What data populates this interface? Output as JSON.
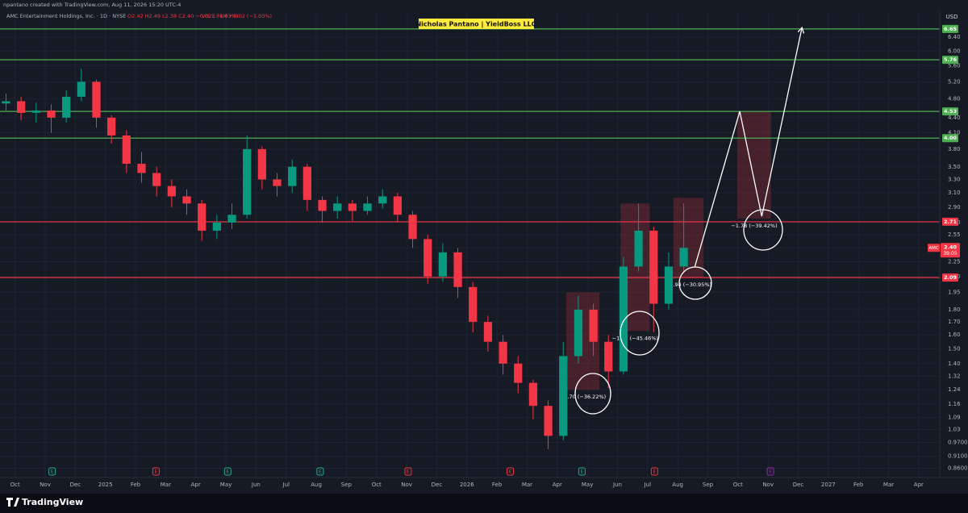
{
  "header": {
    "credit": "npantano created with TradingView.com, Aug 11, 2026 15:20 UTC-4",
    "symbol_line": "AMC Entertainment Holdings, Inc. · 1D · NYSE",
    "ohlc": "O2.42 H2.49 L2.38 C2.40 −0.02 (−1.03%)",
    "volume": "Vol 1.76M −0.02 (−1.03%)",
    "watermark": "Nicholas Pantano | YieldBoss LLC",
    "currency": "USD"
  },
  "footer": {
    "brand": "TradingView"
  },
  "chart_data": {
    "type": "candlestick",
    "log_scale": true,
    "grid": true,
    "up_color": "#089981",
    "down_color": "#f23645",
    "xlim": [
      -0.5,
      30.7
    ],
    "ylim": [
      0.83,
      6.85
    ],
    "xticks": [
      {
        "value": 0,
        "label": "Oct"
      },
      {
        "value": 1,
        "label": "Nov"
      },
      {
        "value": 2,
        "label": "Dec"
      },
      {
        "value": 3,
        "label": "2025"
      },
      {
        "value": 4,
        "label": "Feb"
      },
      {
        "value": 5,
        "label": "Mar"
      },
      {
        "value": 6,
        "label": "Apr"
      },
      {
        "value": 7,
        "label": "May"
      },
      {
        "value": 8,
        "label": "Jun"
      },
      {
        "value": 9,
        "label": "Jul"
      },
      {
        "value": 10,
        "label": "Aug"
      },
      {
        "value": 11,
        "label": "Sep"
      },
      {
        "value": 12,
        "label": "Oct"
      },
      {
        "value": 13,
        "label": "Nov"
      },
      {
        "value": 14,
        "label": "Dec"
      },
      {
        "value": 15,
        "label": "2026"
      },
      {
        "value": 16,
        "label": "Feb"
      },
      {
        "value": 17,
        "label": "Mar"
      },
      {
        "value": 18,
        "label": "Apr"
      },
      {
        "value": 19,
        "label": "May"
      },
      {
        "value": 20,
        "label": "Jun"
      },
      {
        "value": 21,
        "label": "Jul"
      },
      {
        "value": 22,
        "label": "Aug"
      },
      {
        "value": 23,
        "label": "Sep"
      },
      {
        "value": 24,
        "label": "Oct"
      },
      {
        "value": 25,
        "label": "Nov"
      },
      {
        "value": 26,
        "label": "Dec"
      },
      {
        "value": 27,
        "label": "2027"
      },
      {
        "value": 28,
        "label": "Feb"
      },
      {
        "value": 29,
        "label": "Mar"
      },
      {
        "value": 30,
        "label": "Apr"
      }
    ],
    "yticks": [
      {
        "value": 6.4,
        "label": "6.40"
      },
      {
        "value": 6,
        "label": "6.00"
      },
      {
        "value": 5.6,
        "label": "5.60"
      },
      {
        "value": 5.2,
        "label": "5.20"
      },
      {
        "value": 4.8,
        "label": "4.80"
      },
      {
        "value": 4.4,
        "label": "4.40"
      },
      {
        "value": 4.1,
        "label": "4.10"
      },
      {
        "value": 3.8,
        "label": "3.80"
      },
      {
        "value": 3.5,
        "label": "3.50"
      },
      {
        "value": 3.3,
        "label": "3.30"
      },
      {
        "value": 3.1,
        "label": "3.10"
      },
      {
        "value": 2.9,
        "label": "2.90"
      },
      {
        "value": 2.7,
        "label": "2.70"
      },
      2.55,
      {
        "value": 2.4,
        "label": "2.40"
      },
      2.25,
      {
        "value": 2.1,
        "label": "2.10"
      },
      1.95,
      {
        "value": 1.8,
        "label": "1.80"
      },
      {
        "value": 1.7,
        "label": "1.70"
      },
      {
        "value": 1.6,
        "label": "1.60"
      },
      {
        "value": 1.5,
        "label": "1.50"
      },
      {
        "value": 1.4,
        "label": "1.40"
      },
      1.32,
      1.24,
      1.16,
      1.09,
      1.03,
      {
        "value": 0.97,
        "label": "0.9700"
      },
      {
        "value": 0.91,
        "label": "0.9100"
      },
      {
        "value": 0.86,
        "label": "0.8600"
      }
    ],
    "x": [
      -0.3,
      0.2,
      0.7,
      1.2,
      1.7,
      2.2,
      2.7,
      3.2,
      3.7,
      4.2,
      4.7,
      5.2,
      5.7,
      6.2,
      6.7,
      7.2,
      7.7,
      8.2,
      8.7,
      9.2,
      9.7,
      10.2,
      10.7,
      11.2,
      11.7,
      12.2,
      12.7,
      13.2,
      13.7,
      14.2,
      14.7,
      15.2,
      15.7,
      16.2,
      16.7,
      17.2,
      17.7,
      18.2,
      18.7,
      19.2,
      19.7,
      20.2,
      20.7,
      21.2,
      21.7,
      22.2
    ],
    "open": [
      4.7,
      4.75,
      4.5,
      4.55,
      4.4,
      4.85,
      5.2,
      4.4,
      4.05,
      3.55,
      3.4,
      3.2,
      3.05,
      2.95,
      2.6,
      2.7,
      2.8,
      3.8,
      3.3,
      3.2,
      3.5,
      3.0,
      2.85,
      2.95,
      2.85,
      2.95,
      3.05,
      2.8,
      2.5,
      2.1,
      2.35,
      2.0,
      1.7,
      1.55,
      1.4,
      1.28,
      1.15,
      1.0,
      1.45,
      1.8,
      1.55,
      1.35,
      2.2,
      2.6,
      1.85,
      2.2
    ],
    "high": [
      4.92,
      4.85,
      4.72,
      4.68,
      5.0,
      5.53,
      5.25,
      4.45,
      4.15,
      3.75,
      3.5,
      3.3,
      3.15,
      3.0,
      2.8,
      2.95,
      4.05,
      3.85,
      3.4,
      3.62,
      3.55,
      3.05,
      3.05,
      3.0,
      3.05,
      3.15,
      3.1,
      2.85,
      2.55,
      2.45,
      2.4,
      2.05,
      1.75,
      1.6,
      1.45,
      1.3,
      1.18,
      1.55,
      1.92,
      1.85,
      1.6,
      2.3,
      2.95,
      2.65,
      2.35,
      2.95
    ],
    "low": [
      4.55,
      4.35,
      4.3,
      4.1,
      4.3,
      4.75,
      4.2,
      3.9,
      3.4,
      3.25,
      3.05,
      2.9,
      2.8,
      2.48,
      2.5,
      2.62,
      2.75,
      3.15,
      3.05,
      3.1,
      2.85,
      2.7,
      2.75,
      2.72,
      2.8,
      2.88,
      2.7,
      2.4,
      2.03,
      2.05,
      1.9,
      1.62,
      1.48,
      1.33,
      1.22,
      1.08,
      0.94,
      0.98,
      1.4,
      1.45,
      1.25,
      1.33,
      2.15,
      1.62,
      1.8,
      2.15
    ],
    "close": [
      4.75,
      4.5,
      4.55,
      4.4,
      4.85,
      5.2,
      4.4,
      4.05,
      3.55,
      3.4,
      3.2,
      3.05,
      2.95,
      2.6,
      2.7,
      2.8,
      3.8,
      3.3,
      3.2,
      3.5,
      3.0,
      2.85,
      2.95,
      2.85,
      2.95,
      3.05,
      2.8,
      2.5,
      2.1,
      2.35,
      2.0,
      1.7,
      1.55,
      1.4,
      1.28,
      1.15,
      1.0,
      1.45,
      1.8,
      1.55,
      1.35,
      2.2,
      2.6,
      1.85,
      2.2,
      2.4
    ],
    "levels": [
      {
        "value": 6.65,
        "color": "#4caf50"
      },
      {
        "value": 5.76,
        "color": "#4caf50"
      },
      {
        "value": 4.53,
        "color": "#4caf50"
      },
      {
        "value": 4,
        "label": "4.00",
        "color": "#4caf50"
      },
      {
        "value": 2.71,
        "color": "#f23645"
      },
      {
        "value": 2.09,
        "color": "#f23645"
      }
    ],
    "last_price": {
      "symbol": "AMC",
      "value": 2.4,
      "label": "2.40",
      "countdown": "39:05",
      "color": "#f23645"
    },
    "ranges": [
      {
        "x": [
          18.3,
          19.4
        ],
        "y": [
          1.95,
          1.24
        ],
        "label": "−0.70 (−36.22%)"
      },
      {
        "x": [
          20.1,
          21.07
        ],
        "y": [
          2.95,
          1.63
        ],
        "label": "−1.35 (−45.46%)"
      },
      {
        "x": [
          21.85,
          22.86
        ],
        "y": [
          3.03,
          2.09
        ],
        "label": "−0.94 (−30.95%)"
      },
      {
        "x": [
          23.98,
          25.1
        ],
        "y": [
          4.53,
          2.75
        ],
        "label": "−1.78 (−39.42%)"
      }
    ],
    "projection": {
      "x": [
        22.57,
        24.06,
        24.79,
        26.12
      ],
      "y": [
        2.2,
        4.53,
        2.78,
        6.67
      ],
      "color": "#ffffff"
    },
    "events": [
      {
        "x": 1.23,
        "label": "E",
        "color": "#22ab94"
      },
      {
        "x": 4.68,
        "label": "E",
        "color": "#f23645"
      },
      {
        "x": 7.06,
        "label": "E",
        "color": "#22ab94"
      },
      {
        "x": 10.13,
        "label": "E",
        "color": "#22ab94"
      },
      {
        "x": 13.05,
        "label": "E",
        "color": "#f23645"
      },
      {
        "x": 16.44,
        "label": "E",
        "color": "#f23645"
      },
      {
        "x": 18.82,
        "label": "E",
        "color": "#22ab94"
      },
      {
        "x": 21.23,
        "label": "E",
        "color": "#f23645"
      },
      {
        "x": 25.08,
        "label": "E",
        "color": "#9c27b0"
      }
    ]
  }
}
